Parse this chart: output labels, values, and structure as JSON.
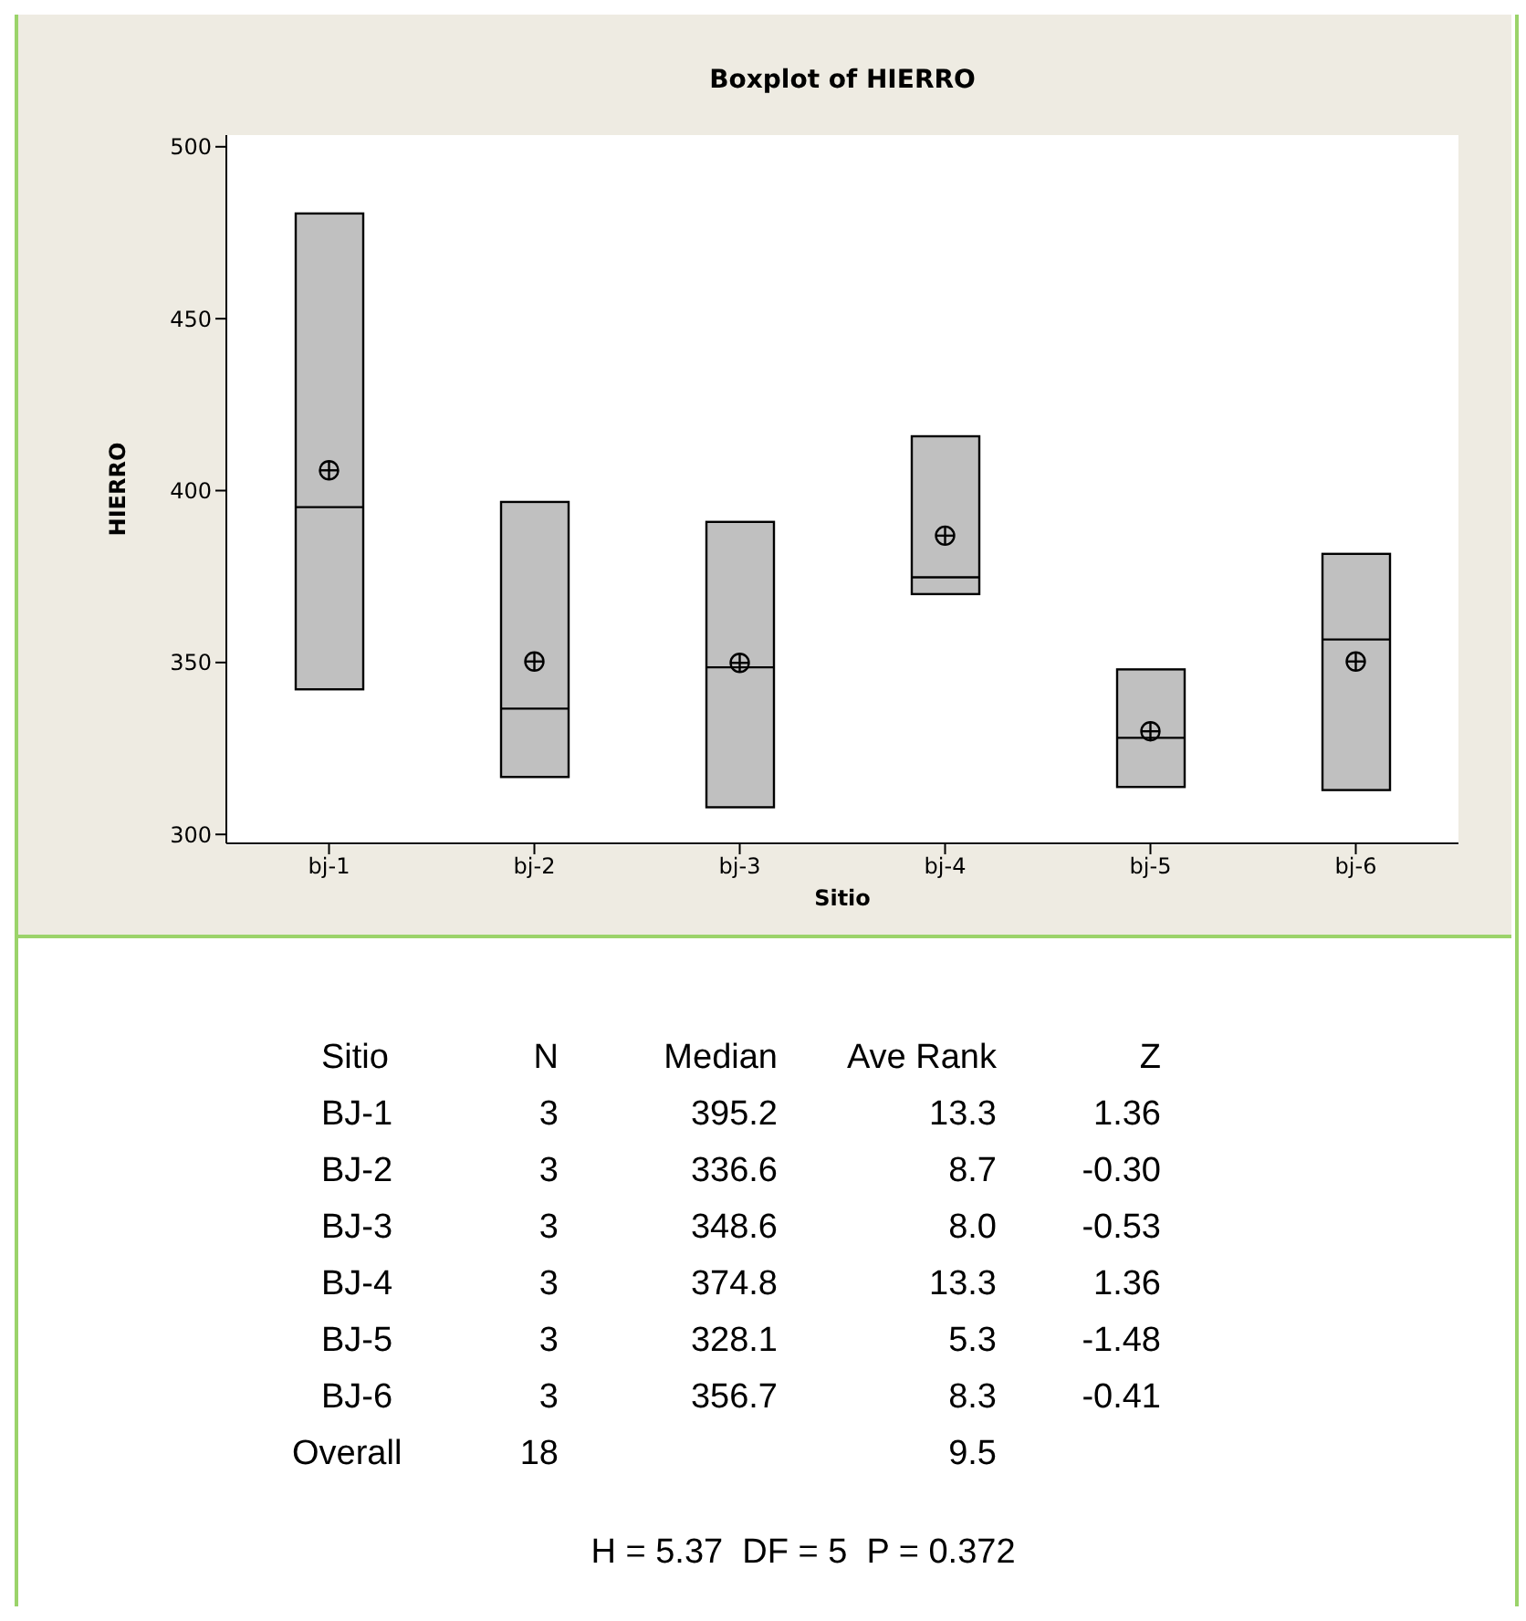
{
  "chart_data": {
    "type": "box",
    "title": "Boxplot of HIERRO",
    "xlabel": "Sitio",
    "ylabel": "HIERRO",
    "categories": [
      "bj-1",
      "bj-2",
      "bj-3",
      "bj-4",
      "bj-5",
      "bj-6"
    ],
    "series": [
      {
        "color": "#c0c0c0",
        "boxes": [
          {
            "low": 342.2,
            "q1": 342.2,
            "median": 395.2,
            "q3": 480.6,
            "high": 480.6,
            "mean": 405.9
          },
          {
            "low": 316.7,
            "q1": 316.7,
            "median": 336.6,
            "q3": 396.7,
            "high": 396.7,
            "mean": 350.3
          },
          {
            "low": 307.9,
            "q1": 307.9,
            "median": 348.6,
            "q3": 390.9,
            "high": 390.9,
            "mean": 349.9
          },
          {
            "low": 369.9,
            "q1": 369.9,
            "median": 374.8,
            "q3": 415.8,
            "high": 415.8,
            "mean": 386.9
          },
          {
            "low": 313.8,
            "q1": 313.8,
            "median": 328.1,
            "q3": 348.0,
            "high": 348.0,
            "mean": 330.0
          },
          {
            "low": 312.9,
            "q1": 312.9,
            "median": 356.7,
            "q3": 381.6,
            "high": 381.6,
            "mean": 350.3
          }
        ]
      }
    ],
    "ylim": [
      297.4,
      503.4
    ],
    "yticks": [
      300,
      350,
      400,
      450,
      500
    ],
    "annotations": [
      "Sitio\tN\tMedian\tAve Rank\tZ",
      "BJ-1\t3\t395.2\t13.3\t1.36",
      "BJ-2\t3\t336.6\t8.7\t-0.30",
      "BJ-3\t3\t348.6\t8.0\t-0.53",
      "BJ-4\t3\t374.8\t13.3\t1.36",
      "BJ-5\t3\t328.1\t5.3\t-1.48",
      "BJ-6\t3\t356.7\t8.3\t-0.41",
      "Overall\t18\t\t9.5\t",
      "H = 5.37  DF = 5  P = 0.372"
    ]
  }
}
